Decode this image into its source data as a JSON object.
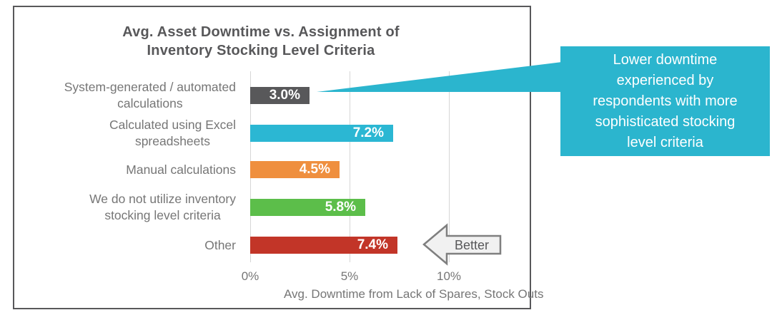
{
  "chart": {
    "title": "Avg. Asset Downtime vs. Assignment of\nInventory Stocking Level Criteria",
    "xlabel": "Avg. Downtime from Lack of Spares, Stock Outs",
    "ticks": [
      "0%",
      "5%",
      "10%"
    ],
    "better_label": "Better",
    "rows": [
      {
        "label": "System-generated / automated\ncalculations",
        "value": 3.0,
        "value_label": "3.0%",
        "color": "#58585A"
      },
      {
        "label": "Calculated using Excel\nspreadsheets",
        "value": 7.2,
        "value_label": "7.2%",
        "color": "#2BB7D3"
      },
      {
        "label": "Manual calculations",
        "value": 4.5,
        "value_label": "4.5%",
        "color": "#EF8F3E"
      },
      {
        "label": "We do not utilize inventory\nstocking level criteria",
        "value": 5.8,
        "value_label": "5.8%",
        "color": "#5CBE4A"
      },
      {
        "label": "Other",
        "value": 7.4,
        "value_label": "7.4%",
        "color": "#C23528"
      }
    ]
  },
  "callout": {
    "text": "Lower downtime\nexperienced by\nrespondents with more\nsophisticated stocking\nlevel criteria",
    "color": "#2BB5CE"
  },
  "chart_data": {
    "type": "bar",
    "orientation": "horizontal",
    "title": "Avg. Asset Downtime vs. Assignment of Inventory Stocking Level Criteria",
    "categories": [
      "System-generated / automated calculations",
      "Calculated using Excel spreadsheets",
      "Manual calculations",
      "We do not utilize inventory stocking level criteria",
      "Other"
    ],
    "values": [
      3.0,
      7.2,
      4.5,
      5.8,
      7.4
    ],
    "value_labels": [
      "3.0%",
      "7.2%",
      "4.5%",
      "5.8%",
      "7.4%"
    ],
    "bar_colors": [
      "#58585A",
      "#2BB7D3",
      "#EF8F3E",
      "#5CBE4A",
      "#C23528"
    ],
    "xlabel": "Avg. Downtime from Lack of Spares, Stock Outs",
    "ylabel": "",
    "xlim": [
      0,
      12
    ],
    "xticks": [
      "0%",
      "5%",
      "10%"
    ],
    "grid": true,
    "legend": false,
    "annotations": [
      "Better (arrow pointing left, lower is better)",
      "Lower downtime experienced by respondents with more sophisticated stocking level criteria (callout pointing at 3.0% bar)"
    ]
  }
}
